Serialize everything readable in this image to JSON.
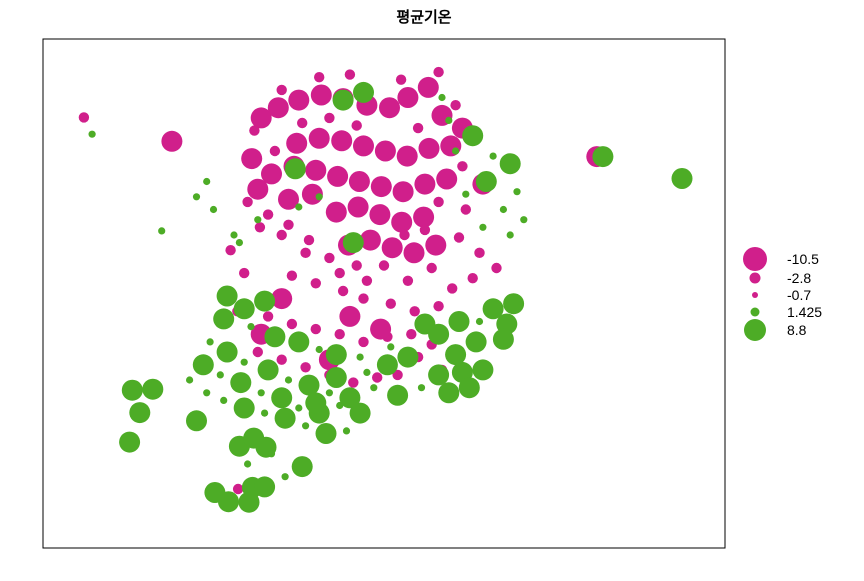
{
  "chart_data": {
    "type": "scatter",
    "title": "평균기온",
    "xlabel": "",
    "ylabel": "",
    "xlim": [
      0,
      100
    ],
    "ylim": [
      0,
      100
    ],
    "grid": false,
    "legend_position": "right",
    "colors": {
      "negative": "#D01F8B",
      "positive": "#4DAC26"
    },
    "legend": [
      {
        "label": "-10.5",
        "value": -10.5
      },
      {
        "label": "-2.8",
        "value": -2.8
      },
      {
        "label": "-0.7",
        "value": -0.7
      },
      {
        "label": "1.425",
        "value": 1.425
      },
      {
        "label": "8.8",
        "value": 8.8
      }
    ],
    "points": [
      [
        6.0,
        84.6,
        -2.8
      ],
      [
        7.2,
        81.3,
        1.4
      ],
      [
        18.9,
        79.9,
        -10.5
      ],
      [
        17.4,
        62.3,
        1.4
      ],
      [
        12.7,
        20.8,
        8.8
      ],
      [
        13.1,
        31.0,
        8.8
      ],
      [
        16.1,
        31.2,
        8.8
      ],
      [
        14.2,
        26.6,
        8.8
      ],
      [
        22.5,
        25.0,
        8.8
      ],
      [
        28.8,
        20.0,
        8.8
      ],
      [
        30.9,
        21.6,
        8.8
      ],
      [
        32.7,
        19.8,
        8.8
      ],
      [
        25.2,
        10.9,
        8.8
      ],
      [
        27.2,
        9.1,
        8.8
      ],
      [
        28.6,
        11.6,
        -2.8
      ],
      [
        30.7,
        11.9,
        8.8
      ],
      [
        32.5,
        12.0,
        8.8
      ],
      [
        30.2,
        9.0,
        8.8
      ],
      [
        81.2,
        76.9,
        -10.5
      ],
      [
        82.1,
        76.9,
        8.8
      ],
      [
        93.7,
        72.6,
        8.8
      ],
      [
        32.0,
        84.5,
        -10.5
      ],
      [
        34.5,
        86.5,
        -10.5
      ],
      [
        37.5,
        88.0,
        -10.5
      ],
      [
        40.8,
        89.0,
        -10.5
      ],
      [
        44.0,
        88.3,
        -10.5
      ],
      [
        47.5,
        87.0,
        -10.5
      ],
      [
        50.8,
        86.5,
        -10.5
      ],
      [
        53.5,
        88.5,
        -10.5
      ],
      [
        56.5,
        90.5,
        -10.5
      ],
      [
        58.5,
        85.0,
        -10.5
      ],
      [
        61.5,
        82.5,
        -10.5
      ],
      [
        37.2,
        79.5,
        -10.5
      ],
      [
        40.5,
        80.5,
        -10.5
      ],
      [
        43.8,
        80.0,
        -10.5
      ],
      [
        47.0,
        79.0,
        -10.5
      ],
      [
        50.2,
        78.0,
        -10.5
      ],
      [
        53.4,
        77.0,
        -10.5
      ],
      [
        56.6,
        78.5,
        -10.5
      ],
      [
        59.8,
        79.0,
        -10.5
      ],
      [
        33.5,
        73.5,
        -10.5
      ],
      [
        36.8,
        75.0,
        -10.5
      ],
      [
        40.0,
        74.2,
        -10.5
      ],
      [
        43.2,
        73.0,
        -10.5
      ],
      [
        46.4,
        72.0,
        -10.5
      ],
      [
        49.6,
        71.0,
        -10.5
      ],
      [
        52.8,
        70.0,
        -10.5
      ],
      [
        56.0,
        71.5,
        -10.5
      ],
      [
        59.2,
        72.5,
        -10.5
      ],
      [
        64.5,
        71.5,
        -10.5
      ],
      [
        43.0,
        66.0,
        -10.5
      ],
      [
        46.2,
        67.0,
        -10.5
      ],
      [
        49.4,
        65.5,
        -10.5
      ],
      [
        52.6,
        64.0,
        -10.5
      ],
      [
        55.8,
        65.0,
        -10.5
      ],
      [
        44.8,
        59.5,
        -10.5
      ],
      [
        48.0,
        60.5,
        -10.5
      ],
      [
        51.2,
        59.0,
        -10.5
      ],
      [
        54.4,
        58.0,
        -10.5
      ],
      [
        57.6,
        59.5,
        -10.5
      ],
      [
        30.6,
        76.5,
        -10.5
      ],
      [
        31.5,
        70.5,
        -10.5
      ],
      [
        36.0,
        68.5,
        -10.5
      ],
      [
        39.5,
        69.5,
        -10.5
      ],
      [
        40.5,
        92.5,
        -2.8
      ],
      [
        45.0,
        93.0,
        -2.8
      ],
      [
        52.5,
        92.0,
        -2.8
      ],
      [
        58.0,
        93.5,
        -2.8
      ],
      [
        35.0,
        90.0,
        -2.8
      ],
      [
        31.0,
        82.0,
        -2.8
      ],
      [
        34.0,
        78.0,
        -2.8
      ],
      [
        38.0,
        83.5,
        -2.8
      ],
      [
        42.0,
        84.5,
        -2.8
      ],
      [
        46.0,
        83.0,
        -2.8
      ],
      [
        55.0,
        82.5,
        -2.8
      ],
      [
        60.5,
        87.0,
        -2.8
      ],
      [
        61.5,
        75.0,
        -2.8
      ],
      [
        62.0,
        66.5,
        -2.8
      ],
      [
        58.0,
        68.0,
        -2.8
      ],
      [
        56.0,
        62.5,
        -2.8
      ],
      [
        53.0,
        61.5,
        -2.8
      ],
      [
        61.0,
        61.0,
        -2.8
      ],
      [
        64.0,
        58.0,
        -2.8
      ],
      [
        66.5,
        55.0,
        -2.8
      ],
      [
        57.0,
        55.0,
        -2.8
      ],
      [
        60.0,
        51.0,
        -2.8
      ],
      [
        63.0,
        53.0,
        -2.8
      ],
      [
        46.0,
        55.5,
        -2.8
      ],
      [
        42.0,
        57.0,
        -2.8
      ],
      [
        39.0,
        60.5,
        -2.8
      ],
      [
        36.0,
        63.5,
        -2.8
      ],
      [
        33.0,
        65.5,
        -2.8
      ],
      [
        30.0,
        68.0,
        -2.8
      ],
      [
        31.8,
        63.0,
        -2.8
      ],
      [
        35.0,
        61.5,
        -2.8
      ],
      [
        38.5,
        58.0,
        -2.8
      ],
      [
        43.5,
        54.0,
        -2.8
      ],
      [
        47.5,
        52.5,
        -2.8
      ],
      [
        50.0,
        55.5,
        -2.8
      ],
      [
        53.5,
        52.5,
        -2.8
      ],
      [
        36.5,
        53.5,
        -2.8
      ],
      [
        40.0,
        52.0,
        -2.8
      ],
      [
        44.0,
        50.5,
        -2.8
      ],
      [
        47.0,
        49.0,
        -2.8
      ],
      [
        51.0,
        48.0,
        -2.8
      ],
      [
        54.5,
        46.5,
        -2.8
      ],
      [
        58.0,
        47.5,
        -2.8
      ],
      [
        33.0,
        45.5,
        -2.8
      ],
      [
        36.5,
        44.0,
        -2.8
      ],
      [
        40.0,
        43.0,
        -2.8
      ],
      [
        43.5,
        42.0,
        -2.8
      ],
      [
        47.0,
        40.5,
        -2.8
      ],
      [
        50.5,
        41.5,
        -2.8
      ],
      [
        54.0,
        42.0,
        -2.8
      ],
      [
        57.0,
        40.0,
        -2.8
      ],
      [
        31.5,
        38.5,
        -2.8
      ],
      [
        35.0,
        37.0,
        -2.8
      ],
      [
        38.5,
        35.5,
        -2.8
      ],
      [
        42.0,
        34.0,
        -2.8
      ],
      [
        45.5,
        32.5,
        -2.8
      ],
      [
        49.0,
        33.5,
        -2.8
      ],
      [
        52.0,
        34.0,
        -2.8
      ],
      [
        27.5,
        58.5,
        -2.8
      ],
      [
        29.5,
        54.0,
        -2.8
      ],
      [
        35.0,
        49.0,
        -10.5
      ],
      [
        28.5,
        46.5,
        -2.8
      ],
      [
        32.0,
        42.0,
        -10.5
      ],
      [
        45.0,
        45.5,
        -10.5
      ],
      [
        42.0,
        37.0,
        -10.5
      ],
      [
        49.5,
        43.0,
        -10.5
      ],
      [
        55.0,
        37.5,
        -2.8
      ],
      [
        58.5,
        35.0,
        -2.8
      ],
      [
        44.0,
        88.0,
        8.8
      ],
      [
        37.0,
        74.5,
        8.8
      ],
      [
        60.5,
        78.0,
        1.4
      ],
      [
        63.0,
        81.0,
        8.8
      ],
      [
        66.0,
        77.0,
        1.4
      ],
      [
        68.5,
        75.5,
        8.8
      ],
      [
        65.0,
        72.0,
        8.8
      ],
      [
        69.5,
        70.0,
        1.4
      ],
      [
        62.0,
        69.5,
        1.4
      ],
      [
        67.5,
        66.5,
        1.4
      ],
      [
        68.5,
        61.5,
        1.4
      ],
      [
        64.5,
        63.0,
        1.4
      ],
      [
        70.5,
        64.5,
        1.4
      ],
      [
        45.5,
        60.0,
        8.8
      ],
      [
        40.5,
        69.0,
        1.4
      ],
      [
        37.5,
        67.0,
        1.4
      ],
      [
        31.5,
        64.5,
        1.4
      ],
      [
        28.0,
        61.5,
        1.4
      ],
      [
        25.0,
        66.5,
        1.4
      ],
      [
        22.5,
        69.0,
        1.4
      ],
      [
        24.0,
        72.0,
        1.4
      ],
      [
        28.8,
        60.0,
        1.4
      ],
      [
        47.0,
        89.5,
        8.8
      ],
      [
        58.5,
        88.5,
        1.4
      ],
      [
        59.5,
        84.0,
        1.4
      ],
      [
        27.0,
        49.5,
        8.8
      ],
      [
        29.5,
        47.0,
        8.8
      ],
      [
        32.5,
        48.5,
        8.8
      ],
      [
        26.5,
        45.0,
        8.8
      ],
      [
        30.5,
        43.5,
        1.4
      ],
      [
        34.0,
        41.5,
        8.8
      ],
      [
        37.5,
        40.5,
        8.8
      ],
      [
        40.5,
        39.0,
        1.4
      ],
      [
        43.0,
        38.0,
        8.8
      ],
      [
        46.5,
        37.5,
        1.4
      ],
      [
        51.0,
        39.5,
        1.4
      ],
      [
        53.5,
        37.5,
        8.8
      ],
      [
        56.0,
        44.0,
        8.8
      ],
      [
        58.0,
        42.0,
        8.8
      ],
      [
        61.0,
        44.5,
        8.8
      ],
      [
        64.0,
        44.5,
        1.4
      ],
      [
        66.0,
        47.0,
        8.8
      ],
      [
        69.0,
        48.0,
        8.8
      ],
      [
        68.0,
        44.0,
        8.8
      ],
      [
        67.5,
        41.0,
        8.8
      ],
      [
        63.5,
        40.5,
        8.8
      ],
      [
        60.5,
        38.0,
        8.8
      ],
      [
        58.0,
        34.0,
        8.8
      ],
      [
        61.5,
        34.5,
        8.8
      ],
      [
        64.5,
        35.0,
        8.8
      ],
      [
        62.5,
        31.5,
        8.8
      ],
      [
        59.5,
        30.5,
        8.8
      ],
      [
        55.5,
        31.5,
        1.4
      ],
      [
        52.0,
        30.0,
        8.8
      ],
      [
        48.5,
        31.5,
        1.4
      ],
      [
        45.0,
        29.5,
        8.8
      ],
      [
        42.0,
        30.5,
        1.4
      ],
      [
        39.0,
        32.0,
        8.8
      ],
      [
        36.0,
        33.0,
        1.4
      ],
      [
        33.0,
        35.0,
        8.8
      ],
      [
        29.5,
        36.5,
        1.4
      ],
      [
        27.0,
        38.5,
        8.8
      ],
      [
        24.5,
        40.5,
        1.4
      ],
      [
        23.5,
        36.0,
        8.8
      ],
      [
        26.0,
        34.0,
        1.4
      ],
      [
        29.0,
        32.5,
        8.8
      ],
      [
        32.0,
        30.5,
        1.4
      ],
      [
        35.0,
        29.5,
        8.8
      ],
      [
        37.5,
        27.5,
        1.4
      ],
      [
        40.5,
        26.5,
        8.8
      ],
      [
        43.5,
        28.0,
        1.4
      ],
      [
        46.5,
        26.5,
        8.8
      ],
      [
        44.5,
        23.0,
        1.4
      ],
      [
        41.5,
        22.5,
        8.8
      ],
      [
        38.5,
        24.0,
        1.4
      ],
      [
        35.5,
        25.5,
        8.8
      ],
      [
        32.5,
        26.5,
        1.4
      ],
      [
        29.5,
        27.5,
        8.8
      ],
      [
        26.5,
        29.0,
        1.4
      ],
      [
        24.0,
        30.5,
        1.4
      ],
      [
        21.5,
        33.0,
        1.4
      ],
      [
        38.0,
        16.0,
        8.8
      ],
      [
        33.5,
        18.5,
        1.4
      ],
      [
        30.0,
        16.5,
        1.4
      ],
      [
        35.5,
        14.0,
        1.4
      ],
      [
        40.0,
        28.5,
        8.8
      ],
      [
        43.0,
        33.5,
        8.8
      ],
      [
        47.5,
        34.5,
        1.4
      ],
      [
        50.5,
        36.0,
        8.8
      ]
    ]
  }
}
